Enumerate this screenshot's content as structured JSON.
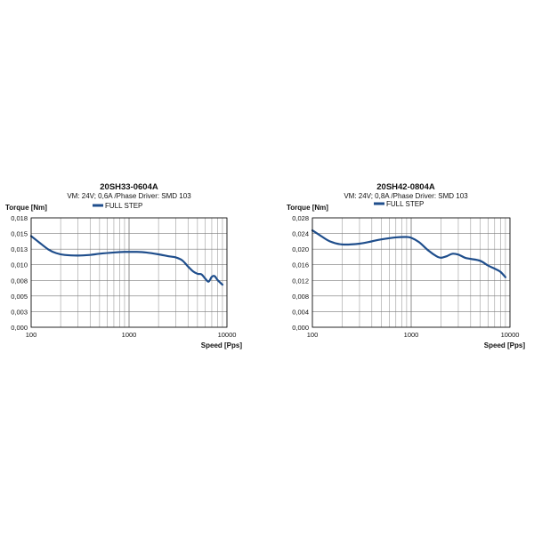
{
  "chart_data": [
    {
      "type": "line",
      "title": "20SH33-0604A",
      "subtitle": "VM: 24V;  0,6A /Phase Driver: SMD 103",
      "legend": [
        "FULL STEP"
      ],
      "legend_placement": "top-left",
      "xlabel": "Speed  [Pps]",
      "ylabel": "Torque  [Nm]",
      "xscale": "log",
      "xlim": [
        100,
        10000
      ],
      "ylim": [
        0,
        0.018
      ],
      "grid": true,
      "xticks": [
        "100",
        "1000",
        "10000"
      ],
      "yticks": [
        "0,018",
        "0,015",
        "0,013",
        "0,010",
        "0,008",
        "0,005",
        "0,003",
        "0,000"
      ],
      "color": "#1f4e8c",
      "series": [
        {
          "name": "FULL STEP",
          "x": [
            100,
            120,
            150,
            180,
            220,
            300,
            400,
            500,
            700,
            900,
            1000,
            1200,
            1500,
            2000,
            2500,
            3000,
            3500,
            4000,
            4500,
            5000,
            5500,
            6000,
            6500,
            7000,
            7500,
            8000,
            9000
          ],
          "y": [
            0.015,
            0.014,
            0.0128,
            0.0122,
            0.0119,
            0.0118,
            0.0119,
            0.0121,
            0.0123,
            0.0124,
            0.0124,
            0.0124,
            0.0123,
            0.012,
            0.0117,
            0.0115,
            0.011,
            0.01,
            0.0092,
            0.0088,
            0.0087,
            0.008,
            0.0075,
            0.0083,
            0.0084,
            0.0078,
            0.007
          ]
        }
      ]
    },
    {
      "type": "line",
      "title": "20SH42-0804A",
      "subtitle": "VM: 24V;  0,8A /Phase Driver: SMD 103",
      "legend": [
        "FULL STEP"
      ],
      "legend_placement": "top-left",
      "xlabel": "Speed  [Pps]",
      "ylabel": "Torque  [Nm]",
      "xscale": "log",
      "xlim": [
        100,
        10000
      ],
      "ylim": [
        0,
        0.028
      ],
      "grid": true,
      "xticks": [
        "100",
        "1000",
        "10000"
      ],
      "yticks": [
        "0,028",
        "0,024",
        "0,020",
        "0,016",
        "0,012",
        "0,008",
        "0,004",
        "0,000"
      ],
      "color": "#1f4e8c",
      "series": [
        {
          "name": "FULL STEP",
          "x": [
            100,
            120,
            150,
            200,
            300,
            400,
            500,
            700,
            900,
            1000,
            1200,
            1500,
            1800,
            2000,
            2300,
            2600,
            3000,
            3500,
            4000,
            5000,
            6000,
            7000,
            8000,
            9000
          ],
          "y": [
            0.0248,
            0.0235,
            0.022,
            0.0212,
            0.0214,
            0.022,
            0.0225,
            0.023,
            0.0231,
            0.0229,
            0.0218,
            0.0196,
            0.0182,
            0.0178,
            0.0182,
            0.0188,
            0.0186,
            0.0178,
            0.0175,
            0.017,
            0.0158,
            0.015,
            0.0142,
            0.0128
          ]
        }
      ]
    }
  ]
}
